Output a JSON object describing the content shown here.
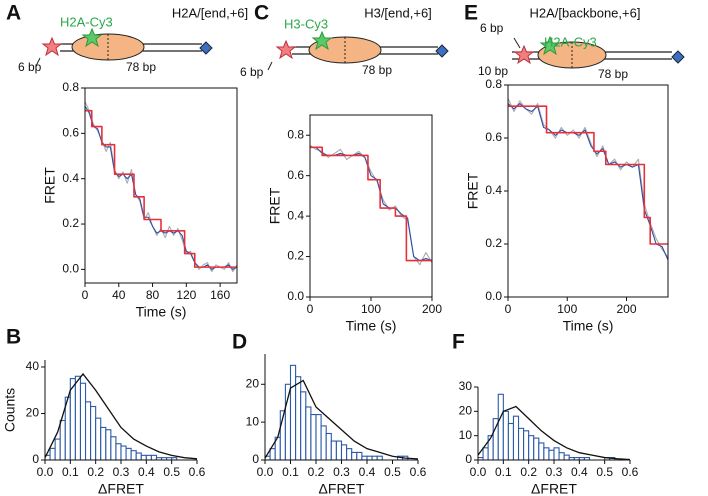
{
  "panel_letters": [
    "A",
    "C",
    "E",
    "B",
    "D",
    "F"
  ],
  "diagrams": [
    {
      "title": "H2A/[end,+6]",
      "dye": "H2A-Cy3",
      "left_bp": "6 bp",
      "right_bp": "78 bp"
    },
    {
      "title": "H3/[end,+6]",
      "dye": "H3-Cy3",
      "left_bp": "6 bp",
      "right_bp": "78 bp"
    },
    {
      "title": "H2A/[backbone,+6]",
      "dye": "H2A-Cy3",
      "top_bp": "6 bp",
      "left_bp": "10 bp",
      "right_bp": "78 bp"
    }
  ],
  "chart_data": [
    {
      "type": "line",
      "x_label": "Time (s)",
      "y_label": "FRET",
      "xlim": [
        0,
        180
      ],
      "ylim": [
        -0.06,
        0.8
      ],
      "xticks": [
        0,
        40,
        80,
        120,
        160
      ],
      "yticks": [
        {
          "value": 0,
          "label": "0.0"
        },
        0.2,
        0.4,
        0.6,
        0.8
      ],
      "series": [
        {
          "color": "#aaaaaa",
          "x": [
            0,
            5,
            10,
            15,
            20,
            25,
            30,
            35,
            40,
            45,
            50,
            55,
            60,
            65,
            70,
            75,
            80,
            85,
            90,
            95,
            100,
            105,
            110,
            115,
            120,
            125,
            130,
            135,
            140,
            145,
            150,
            155,
            160,
            165,
            170,
            175,
            180
          ],
          "values": [
            0.74,
            0.7,
            0.64,
            0.61,
            0.57,
            0.52,
            0.56,
            0.44,
            0.4,
            0.43,
            0.38,
            0.44,
            0.33,
            0.3,
            0.22,
            0.25,
            0.19,
            0.15,
            0.18,
            0.14,
            0.19,
            0.15,
            0.18,
            0.13,
            0.07,
            0.08,
            0.03,
            0.0,
            0.02,
            0.03,
            -0.01,
            0.02,
            0.01,
            0.0,
            0.03,
            -0.01,
            0.02
          ]
        },
        {
          "color": "#2b4fa8",
          "x": [
            0,
            5,
            10,
            15,
            20,
            25,
            30,
            35,
            40,
            45,
            50,
            55,
            60,
            65,
            70,
            75,
            80,
            85,
            90,
            95,
            100,
            105,
            110,
            115,
            120,
            125,
            130,
            135,
            140,
            145,
            150,
            155,
            160,
            165,
            170,
            175,
            180
          ],
          "values": [
            0.72,
            0.69,
            0.63,
            0.62,
            0.56,
            0.54,
            0.54,
            0.43,
            0.41,
            0.42,
            0.4,
            0.42,
            0.33,
            0.31,
            0.23,
            0.23,
            0.19,
            0.16,
            0.17,
            0.16,
            0.17,
            0.16,
            0.17,
            0.15,
            0.08,
            0.07,
            0.03,
            0.01,
            0.01,
            0.02,
            0.0,
            0.01,
            0.01,
            0.01,
            0.02,
            0.0,
            0.01
          ]
        },
        {
          "color": "#e8303a",
          "x": [
            0,
            8,
            8,
            20,
            20,
            35,
            35,
            58,
            58,
            70,
            70,
            90,
            90,
            118,
            118,
            130,
            130,
            180
          ],
          "values": [
            0.7,
            0.7,
            0.63,
            0.63,
            0.55,
            0.55,
            0.42,
            0.42,
            0.32,
            0.32,
            0.22,
            0.22,
            0.17,
            0.17,
            0.07,
            0.07,
            0.01,
            0.01
          ]
        }
      ]
    },
    {
      "type": "line",
      "x_label": "Time (s)",
      "y_label": "FRET",
      "xlim": [
        0,
        200
      ],
      "ylim": [
        0,
        0.9
      ],
      "xticks": [
        0,
        100,
        200
      ],
      "yticks": [
        {
          "value": 0,
          "label": "0.0"
        },
        0.2,
        0.4,
        0.6,
        0.8
      ],
      "series": [
        {
          "color": "#aaaaaa",
          "x": [
            0,
            10,
            20,
            30,
            40,
            50,
            60,
            70,
            80,
            90,
            100,
            110,
            120,
            130,
            140,
            150,
            160,
            170,
            180,
            190,
            200
          ],
          "values": [
            0.75,
            0.73,
            0.72,
            0.69,
            0.71,
            0.73,
            0.68,
            0.7,
            0.72,
            0.69,
            0.62,
            0.57,
            0.48,
            0.43,
            0.45,
            0.4,
            0.38,
            0.2,
            0.16,
            0.22,
            0.17
          ]
        },
        {
          "color": "#2b4fa8",
          "x": [
            0,
            10,
            20,
            30,
            40,
            50,
            60,
            70,
            80,
            90,
            100,
            110,
            120,
            130,
            140,
            150,
            160,
            170,
            180,
            190,
            200
          ],
          "values": [
            0.74,
            0.74,
            0.71,
            0.7,
            0.7,
            0.71,
            0.7,
            0.7,
            0.71,
            0.69,
            0.6,
            0.58,
            0.46,
            0.44,
            0.44,
            0.41,
            0.39,
            0.2,
            0.18,
            0.19,
            0.18
          ]
        },
        {
          "color": "#e8303a",
          "x": [
            0,
            20,
            20,
            95,
            95,
            115,
            115,
            140,
            140,
            158,
            158,
            200
          ],
          "values": [
            0.74,
            0.74,
            0.7,
            0.7,
            0.58,
            0.58,
            0.44,
            0.44,
            0.4,
            0.4,
            0.18,
            0.18
          ]
        }
      ]
    },
    {
      "type": "line",
      "x_label": "Time (s)",
      "y_label": "FRET",
      "xlim": [
        0,
        270
      ],
      "ylim": [
        0,
        0.8
      ],
      "xticks": [
        0,
        100,
        200
      ],
      "yticks": [
        {
          "value": 0,
          "label": "0.0"
        },
        0.2,
        0.4,
        0.6,
        0.8
      ],
      "series": [
        {
          "color": "#aaaaaa",
          "x": [
            0,
            10,
            20,
            30,
            40,
            50,
            60,
            70,
            80,
            90,
            100,
            110,
            120,
            130,
            140,
            150,
            160,
            170,
            180,
            190,
            200,
            210,
            220,
            230,
            240,
            250,
            260,
            270
          ],
          "values": [
            0.75,
            0.7,
            0.74,
            0.71,
            0.69,
            0.73,
            0.65,
            0.63,
            0.6,
            0.64,
            0.61,
            0.63,
            0.6,
            0.64,
            0.58,
            0.53,
            0.57,
            0.5,
            0.52,
            0.48,
            0.51,
            0.49,
            0.52,
            0.35,
            0.28,
            0.22,
            0.18,
            0.15
          ]
        },
        {
          "color": "#2b4fa8",
          "x": [
            0,
            10,
            20,
            30,
            40,
            50,
            60,
            70,
            80,
            90,
            100,
            110,
            120,
            130,
            140,
            150,
            160,
            170,
            180,
            190,
            200,
            210,
            220,
            230,
            240,
            250,
            260,
            270
          ],
          "values": [
            0.73,
            0.71,
            0.73,
            0.71,
            0.7,
            0.72,
            0.64,
            0.63,
            0.61,
            0.63,
            0.62,
            0.62,
            0.61,
            0.63,
            0.57,
            0.54,
            0.56,
            0.5,
            0.51,
            0.49,
            0.5,
            0.49,
            0.5,
            0.33,
            0.27,
            0.2,
            0.19,
            0.14
          ]
        },
        {
          "color": "#e8303a",
          "x": [
            0,
            65,
            65,
            145,
            145,
            165,
            165,
            230,
            230,
            240,
            240,
            270
          ],
          "values": [
            0.72,
            0.72,
            0.62,
            0.62,
            0.55,
            0.55,
            0.5,
            0.5,
            0.3,
            0.3,
            0.2,
            0.2
          ]
        }
      ]
    },
    {
      "type": "histogram",
      "x_label": "ΔFRET",
      "y_label": "Counts",
      "color": "#2b5aa8",
      "xlim": [
        0,
        0.6
      ],
      "ylim": [
        0,
        43
      ],
      "xticks": [
        {
          "value": 0,
          "label": "0.0"
        },
        0.1,
        0.2,
        0.3,
        0.4,
        0.5,
        0.6
      ],
      "yticks": [
        0,
        20,
        40
      ],
      "bins": [
        0,
        0.02,
        0.04,
        0.06,
        0.08,
        0.1,
        0.12,
        0.14,
        0.16,
        0.18,
        0.2,
        0.22,
        0.24,
        0.26,
        0.28,
        0.3,
        0.32,
        0.34,
        0.36,
        0.38,
        0.4,
        0.42,
        0.44,
        0.46,
        0.48,
        0.5,
        0.52,
        0.54,
        0.56,
        0.58,
        0.6
      ],
      "values": [
        2,
        5,
        9,
        17,
        27,
        35,
        36,
        33,
        25,
        23,
        18,
        14,
        13,
        10,
        7,
        6,
        5,
        4,
        3,
        2,
        2,
        2,
        1,
        1,
        1,
        1,
        0,
        0,
        0,
        0
      ],
      "curve": {
        "color": "#111111",
        "x": [
          0,
          0.05,
          0.1,
          0.15,
          0.2,
          0.25,
          0.3,
          0.35,
          0.4,
          0.45,
          0.5,
          0.55,
          0.6
        ],
        "values": [
          1,
          12,
          30,
          37,
          30,
          22,
          14,
          9,
          6,
          3.5,
          2,
          1,
          0.5
        ]
      }
    },
    {
      "type": "histogram",
      "x_label": "ΔFRET",
      "color": "#2b5aa8",
      "xlim": [
        0,
        0.6
      ],
      "ylim": [
        0,
        28
      ],
      "xticks": [
        {
          "value": 0,
          "label": "0.0"
        },
        0.1,
        0.2,
        0.3,
        0.4,
        0.5,
        0.6
      ],
      "yticks": [
        0,
        10,
        20
      ],
      "bins": [
        0,
        0.02,
        0.04,
        0.06,
        0.08,
        0.1,
        0.12,
        0.14,
        0.16,
        0.18,
        0.2,
        0.22,
        0.24,
        0.26,
        0.28,
        0.3,
        0.32,
        0.34,
        0.36,
        0.38,
        0.4,
        0.42,
        0.44,
        0.46,
        0.48,
        0.5,
        0.52,
        0.54,
        0.56,
        0.58,
        0.6
      ],
      "values": [
        1,
        3,
        6,
        13,
        20,
        25,
        22,
        18,
        14,
        12,
        12,
        9,
        7,
        5,
        5,
        4,
        3,
        2,
        2,
        1,
        1,
        1,
        1,
        0,
        0,
        0,
        1,
        1,
        0,
        0
      ],
      "curve": {
        "color": "#111111",
        "x": [
          0,
          0.05,
          0.1,
          0.15,
          0.2,
          0.25,
          0.3,
          0.35,
          0.4,
          0.45,
          0.5,
          0.55,
          0.6
        ],
        "values": [
          0.5,
          6,
          19,
          21,
          14,
          11,
          8,
          5,
          3,
          2,
          1,
          0.5,
          0.3
        ]
      }
    },
    {
      "type": "histogram",
      "x_label": "ΔFRET",
      "color": "#2b5aa8",
      "xlim": [
        0,
        0.6
      ],
      "ylim": [
        0,
        30
      ],
      "xticks": [
        {
          "value": 0,
          "label": "0.0"
        },
        0.1,
        0.2,
        0.3,
        0.4,
        0.5,
        0.6
      ],
      "yticks": [
        0,
        10,
        20,
        30
      ],
      "bins": [
        0,
        0.02,
        0.04,
        0.06,
        0.08,
        0.1,
        0.12,
        0.14,
        0.16,
        0.18,
        0.2,
        0.22,
        0.24,
        0.26,
        0.28,
        0.3,
        0.32,
        0.34,
        0.36,
        0.38,
        0.4,
        0.42,
        0.44,
        0.46,
        0.48,
        0.5,
        0.52,
        0.54,
        0.56,
        0.58,
        0.6
      ],
      "values": [
        1,
        5,
        10,
        17,
        27,
        20,
        15,
        18,
        13,
        12,
        10,
        9,
        7,
        5,
        4,
        5,
        3,
        2,
        1,
        1,
        1,
        1,
        0,
        0,
        0,
        1,
        1,
        0,
        0,
        0
      ],
      "curve": {
        "color": "#111111",
        "x": [
          0,
          0.05,
          0.1,
          0.15,
          0.2,
          0.25,
          0.3,
          0.35,
          0.4,
          0.45,
          0.5,
          0.55,
          0.6
        ],
        "values": [
          2,
          9,
          20,
          22,
          17,
          12,
          8,
          5,
          3,
          2,
          1,
          0.5,
          0.2
        ]
      }
    }
  ]
}
